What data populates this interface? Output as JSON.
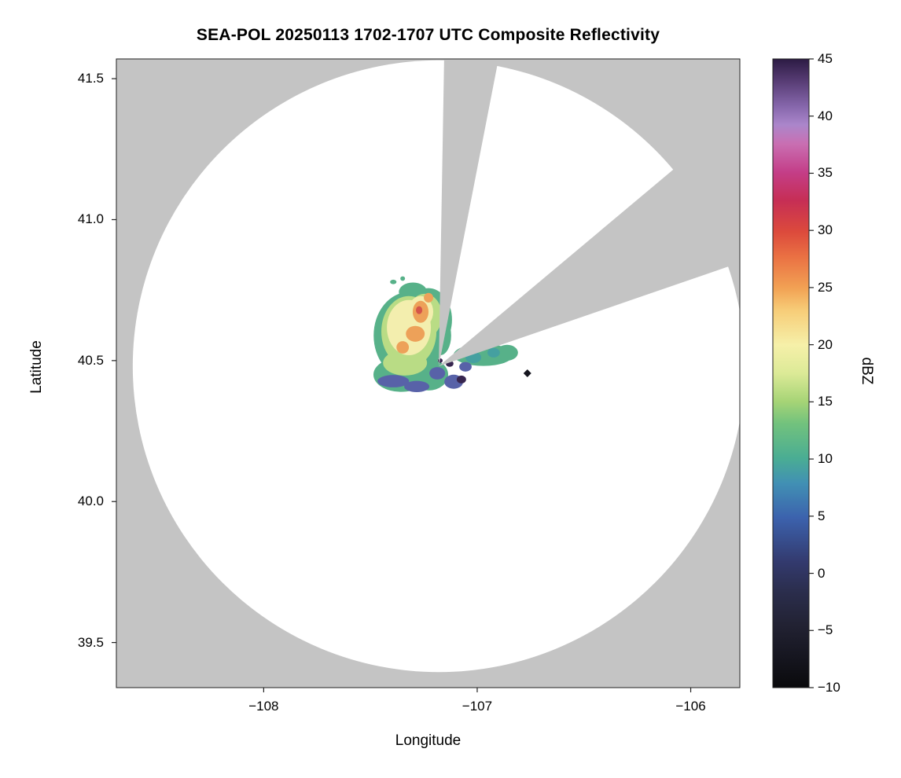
{
  "page_background": "#ffffff",
  "chart_data": {
    "type": "heatmap",
    "title": "SEA-POL 20250113 1702-1707 UTC Composite Reflectivity",
    "xlabel": "Longitude",
    "ylabel": "Latitude",
    "xlim": [
      -108.69,
      -105.77
    ],
    "ylim": [
      39.34,
      41.57
    ],
    "xticks": [
      -108,
      -107,
      -106
    ],
    "xtick_labels": [
      "−108",
      "−107",
      "−106"
    ],
    "yticks": [
      41.5,
      41.0,
      40.5,
      40.0,
      39.5
    ],
    "ytick_labels": [
      "41.5",
      "41.0",
      "40.5",
      "40.0",
      "39.5"
    ],
    "grid": false,
    "background_outside_range": "#c4c4c4",
    "background_inside_range": "#ffffff",
    "radar": {
      "center_lon": -107.18,
      "center_lat": 40.48,
      "range_lat_deg": 1.085,
      "blocked_sectors_deg": [
        {
          "start": 1,
          "end": 11
        },
        {
          "start": 50,
          "end": 71
        }
      ]
    },
    "colorbar": {
      "label": "dBZ",
      "vmin": -10,
      "vmax": 45,
      "ticks": [
        45,
        40,
        35,
        30,
        25,
        20,
        15,
        10,
        5,
        0,
        -5,
        -10
      ],
      "tick_labels": [
        "45",
        "40",
        "35",
        "30",
        "25",
        "20",
        "15",
        "10",
        "5",
        "0",
        "−5",
        "−10"
      ],
      "stops": [
        {
          "pos": 0.0,
          "color": "#0a0a0c"
        },
        {
          "pos": 0.05,
          "color": "#161620"
        },
        {
          "pos": 0.1,
          "color": "#222233"
        },
        {
          "pos": 0.155,
          "color": "#2b2e4e"
        },
        {
          "pos": 0.2,
          "color": "#333a6e"
        },
        {
          "pos": 0.27,
          "color": "#3c62ad"
        },
        {
          "pos": 0.325,
          "color": "#4190b4"
        },
        {
          "pos": 0.365,
          "color": "#4aad93"
        },
        {
          "pos": 0.42,
          "color": "#72c27d"
        },
        {
          "pos": 0.455,
          "color": "#a6d476"
        },
        {
          "pos": 0.5,
          "color": "#dcea97"
        },
        {
          "pos": 0.545,
          "color": "#f6f0a9"
        },
        {
          "pos": 0.6,
          "color": "#f7cd78"
        },
        {
          "pos": 0.635,
          "color": "#f2a254"
        },
        {
          "pos": 0.685,
          "color": "#ea7143"
        },
        {
          "pos": 0.725,
          "color": "#dc4a3c"
        },
        {
          "pos": 0.775,
          "color": "#c62e55"
        },
        {
          "pos": 0.82,
          "color": "#c43e88"
        },
        {
          "pos": 0.865,
          "color": "#c96fb2"
        },
        {
          "pos": 0.895,
          "color": "#ab86cb"
        },
        {
          "pos": 0.925,
          "color": "#8566ab"
        },
        {
          "pos": 0.965,
          "color": "#573c74"
        },
        {
          "pos": 1.0,
          "color": "#2c1b44"
        }
      ]
    },
    "echo": {
      "extent": {
        "lon_min": -107.47,
        "lon_max": -106.84,
        "lat_min": 40.39,
        "lat_max": 40.79
      },
      "cells": [
        {
          "lon": -107.32,
          "lat": 40.589,
          "rx": 0.165,
          "ry": 0.154,
          "dbz": 10,
          "color": "#57b189"
        },
        {
          "lon": -107.228,
          "lat": 40.645,
          "rx": 0.11,
          "ry": 0.112,
          "dbz": 10,
          "color": "#57b189"
        },
        {
          "lon": -107.357,
          "lat": 40.45,
          "rx": 0.129,
          "ry": 0.061,
          "dbz": 10,
          "color": "#57b189"
        },
        {
          "lon": -107.228,
          "lat": 40.45,
          "rx": 0.092,
          "ry": 0.056,
          "dbz": 10,
          "color": "#57b189"
        },
        {
          "lon": -106.971,
          "lat": 40.52,
          "rx": 0.14,
          "ry": 0.039,
          "dbz": 10,
          "color": "#57b189"
        },
        {
          "lon": -106.86,
          "lat": 40.528,
          "rx": 0.051,
          "ry": 0.028,
          "dbz": 10,
          "color": "#57b189"
        },
        {
          "lon": -107.301,
          "lat": 40.743,
          "rx": 0.066,
          "ry": 0.034,
          "dbz": 10,
          "color": "#57b189"
        },
        {
          "lon": -107.173,
          "lat": 40.589,
          "rx": 0.051,
          "ry": 0.07,
          "dbz": 10,
          "color": "#57b189"
        },
        {
          "lon": -107.393,
          "lat": 40.779,
          "rx": 0.015,
          "ry": 0.008,
          "dbz": 10,
          "color": "#57b189"
        },
        {
          "lon": -107.349,
          "lat": 40.791,
          "rx": 0.011,
          "ry": 0.008,
          "dbz": 10,
          "color": "#57b189"
        },
        {
          "lon": -107.32,
          "lat": 40.603,
          "rx": 0.129,
          "ry": 0.126,
          "dbz": 15,
          "color": "#b9dc85"
        },
        {
          "lon": -107.246,
          "lat": 40.659,
          "rx": 0.081,
          "ry": 0.078,
          "dbz": 15,
          "color": "#b9dc85"
        },
        {
          "lon": -107.338,
          "lat": 40.492,
          "rx": 0.103,
          "ry": 0.045,
          "dbz": 15,
          "color": "#b9dc85"
        },
        {
          "lon": -107.32,
          "lat": 40.617,
          "rx": 0.103,
          "ry": 0.098,
          "dbz": 18,
          "color": "#f3eeae"
        },
        {
          "lon": -107.265,
          "lat": 40.673,
          "rx": 0.059,
          "ry": 0.056,
          "dbz": 18,
          "color": "#f3eeae"
        },
        {
          "lon": -107.265,
          "lat": 40.673,
          "rx": 0.037,
          "ry": 0.039,
          "dbz": 25,
          "color": "#eda159"
        },
        {
          "lon": -107.29,
          "lat": 40.595,
          "rx": 0.044,
          "ry": 0.028,
          "dbz": 25,
          "color": "#eda159"
        },
        {
          "lon": -107.349,
          "lat": 40.547,
          "rx": 0.029,
          "ry": 0.022,
          "dbz": 25,
          "color": "#eda159"
        },
        {
          "lon": -107.228,
          "lat": 40.723,
          "rx": 0.022,
          "ry": 0.017,
          "dbz": 25,
          "color": "#eda159"
        },
        {
          "lon": -107.272,
          "lat": 40.679,
          "rx": 0.015,
          "ry": 0.014,
          "dbz": 30,
          "color": "#d4554a"
        },
        {
          "lon": -107.018,
          "lat": 40.511,
          "rx": 0.037,
          "ry": 0.02,
          "dbz": 8,
          "color": "#45a0a0"
        },
        {
          "lon": -106.923,
          "lat": 40.528,
          "rx": 0.029,
          "ry": 0.017,
          "dbz": 8,
          "color": "#45a0a0"
        },
        {
          "lon": -107.393,
          "lat": 40.427,
          "rx": 0.074,
          "ry": 0.022,
          "dbz": 3,
          "color": "#5862a8"
        },
        {
          "lon": -107.283,
          "lat": 40.408,
          "rx": 0.059,
          "ry": 0.02,
          "dbz": 3,
          "color": "#5862a8"
        },
        {
          "lon": -107.187,
          "lat": 40.455,
          "rx": 0.037,
          "ry": 0.022,
          "dbz": 3,
          "color": "#5862a8"
        },
        {
          "lon": -107.11,
          "lat": 40.425,
          "rx": 0.044,
          "ry": 0.025,
          "dbz": 3,
          "color": "#5862a8"
        },
        {
          "lon": -107.055,
          "lat": 40.478,
          "rx": 0.029,
          "ry": 0.017,
          "dbz": 3,
          "color": "#5862a8"
        },
        {
          "lon": -107.129,
          "lat": 40.489,
          "rx": 0.018,
          "ry": 0.011,
          "dbz": 43,
          "color": "#37254f"
        },
        {
          "lon": -107.074,
          "lat": 40.433,
          "rx": 0.022,
          "ry": 0.014,
          "dbz": 43,
          "color": "#37254f"
        },
        {
          "lon": -107.173,
          "lat": 40.5,
          "rx": 0.011,
          "ry": 0.008,
          "dbz": 43,
          "color": "#37254f"
        }
      ],
      "point_marker": {
        "lon": -106.765,
        "lat": 40.455,
        "color": "#15151f"
      }
    }
  }
}
